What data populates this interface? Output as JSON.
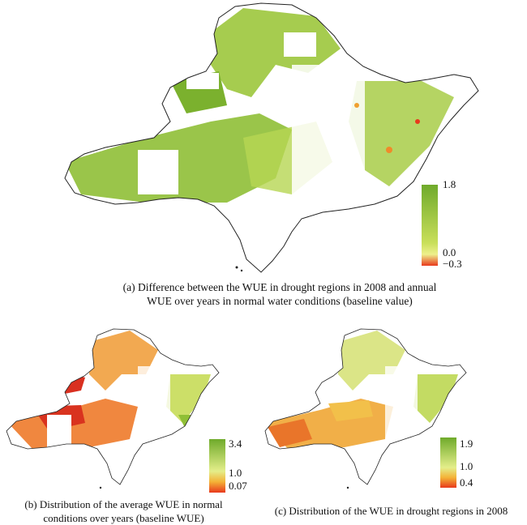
{
  "panels": [
    {
      "id": "a",
      "caption_line1": "(a) Difference between the WUE in drought regions in 2008 and annual",
      "caption_line2": "WUE over years in normal water conditions (baseline value)",
      "legend": {
        "max": "1.8",
        "mid": "0.0",
        "min": "−0.3"
      },
      "colors": {
        "high": "#6faa2b",
        "mid": "#e4ee8a",
        "low": "#e8391c"
      }
    },
    {
      "id": "b",
      "caption_line1": "(b) Distribution of the average WUE in normal",
      "caption_line2": "conditions over years (baseline WUE)",
      "legend": {
        "max": "3.4",
        "mid": "1.0",
        "min": "0.07"
      },
      "colors": {
        "high": "#6faa2b",
        "mid": "#e4ee8a",
        "low": "#e8391c"
      }
    },
    {
      "id": "c",
      "caption_line1": "(c) Distribution of the WUE in drought regions in 2008",
      "legend": {
        "max": "1.9",
        "mid": "1.0",
        "min": "0.4"
      },
      "colors": {
        "high": "#6faa2b",
        "mid": "#e4ee8a",
        "low": "#e8391c"
      }
    }
  ]
}
